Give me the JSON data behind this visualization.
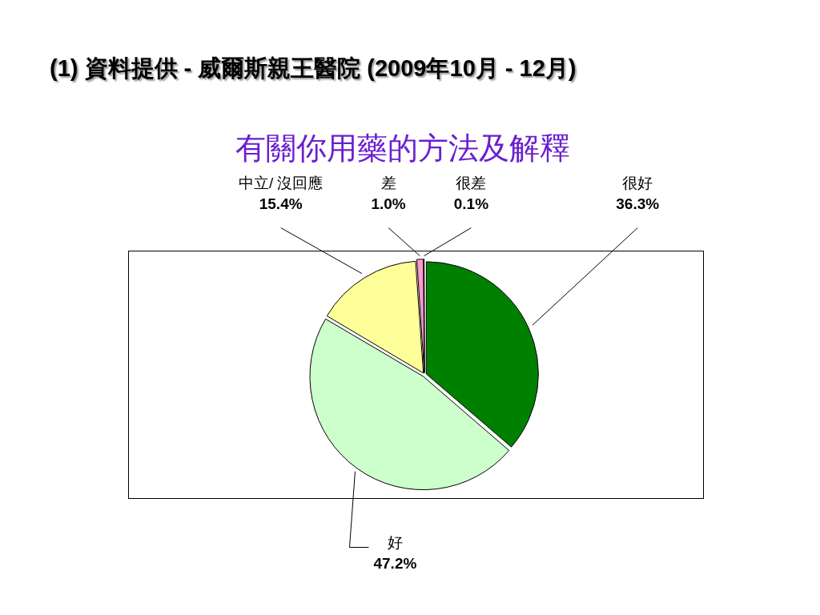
{
  "chart_data": {
    "type": "pie",
    "title": "(1) 資料提供 - 威爾斯親王醫院 (2009年10月 - 12月)",
    "subtitle": "有關你用藥的方法及解釋",
    "categories": [
      "很好",
      "好",
      "中立/ 沒回應",
      "差",
      "很差"
    ],
    "values": [
      36.3,
      47.2,
      15.4,
      1.0,
      0.1
    ],
    "colors": [
      "#008000",
      "#ccffcc",
      "#ffff99",
      "#ff99cc",
      "#ffffff"
    ],
    "value_labels": [
      "36.3%",
      "47.2%",
      "15.4%",
      "1.0%",
      "0.1%"
    ]
  }
}
